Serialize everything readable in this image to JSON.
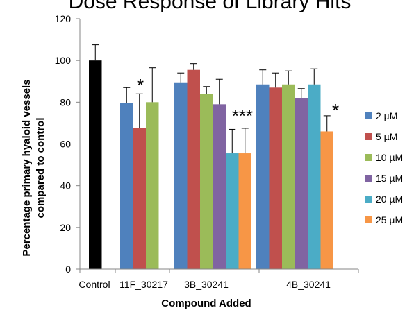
{
  "chart_data": {
    "type": "bar",
    "title": "Dose Response of Library Hits",
    "xlabel": "Compound  Added",
    "ylabel": "Percentage primary hyaloid vessels compared to control",
    "ylabel_lines": [
      "Percentage primary  hyaloid vessels",
      "compared to control"
    ],
    "ylim": [
      0,
      120
    ],
    "yticks": [
      0,
      20,
      40,
      60,
      80,
      100,
      120
    ],
    "grid": false,
    "legend_position": "right",
    "categories": [
      "Control",
      "11F_30217",
      "3B_30241",
      "4B_30241"
    ],
    "series": [
      {
        "name": "Control",
        "color": "#000000",
        "in_legend": false,
        "values": [
          100,
          null,
          null,
          null
        ],
        "errors": [
          7.5,
          null,
          null,
          null
        ]
      },
      {
        "name": "2  µM",
        "color": "#4f81bd",
        "in_legend": true,
        "values": [
          null,
          79.5,
          89.5,
          88.5
        ],
        "errors": [
          null,
          7.5,
          4.5,
          7
        ]
      },
      {
        "name": "5  µM",
        "color": "#c0504d",
        "in_legend": true,
        "values": [
          null,
          67.5,
          95.5,
          87
        ],
        "errors": [
          null,
          16.5,
          3,
          7
        ]
      },
      {
        "name": "10 µM",
        "color": "#9bbb59",
        "in_legend": true,
        "values": [
          null,
          80,
          84,
          88.5
        ],
        "errors": [
          null,
          16.5,
          3.5,
          6.5
        ]
      },
      {
        "name": "15  µM",
        "color": "#8064a2",
        "in_legend": true,
        "values": [
          null,
          null,
          79,
          82
        ],
        "errors": [
          null,
          null,
          12,
          4.5
        ]
      },
      {
        "name": "20  µM",
        "color": "#4bacc6",
        "in_legend": true,
        "values": [
          null,
          null,
          55.5,
          88.5
        ],
        "errors": [
          null,
          null,
          11.5,
          7.5
        ]
      },
      {
        "name": "25  µM",
        "color": "#f79646",
        "in_legend": true,
        "values": [
          null,
          null,
          55.5,
          66
        ],
        "errors": [
          null,
          null,
          12,
          7.5
        ]
      }
    ],
    "annotations": [
      {
        "text": "*",
        "category": "11F_30217",
        "series": "5  µM"
      },
      {
        "text": "***",
        "category": "3B_30241",
        "series": "20  µM"
      },
      {
        "text": "*",
        "category": "4B_30241",
        "series": "25  µM"
      }
    ]
  }
}
